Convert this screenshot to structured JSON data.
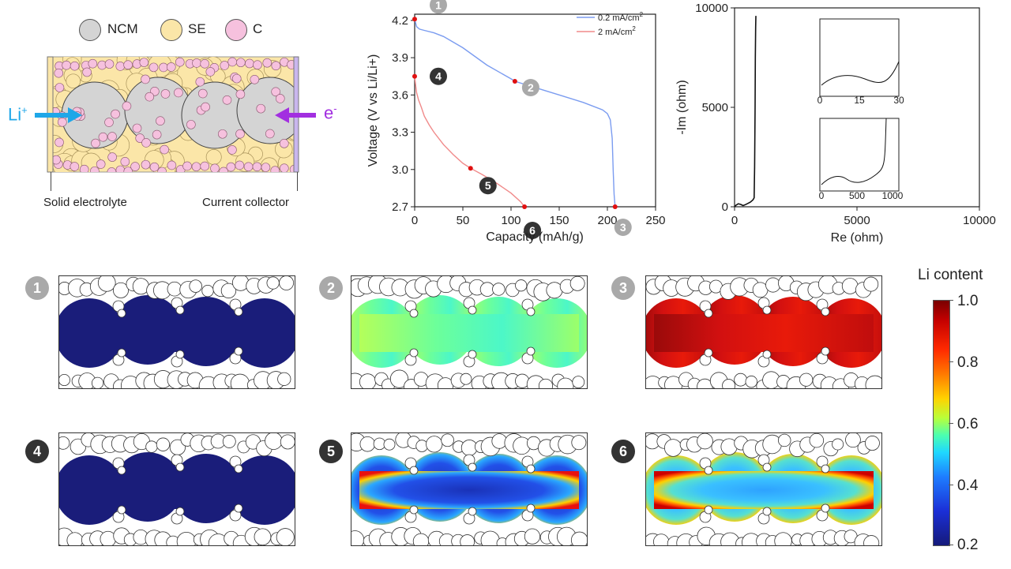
{
  "schematic": {
    "legend": [
      {
        "label": "NCM",
        "color": "#d4d4d4"
      },
      {
        "label": "SE",
        "color": "#fbe6a8"
      },
      {
        "label": "C",
        "color": "#f6c1de"
      }
    ],
    "li_ion": {
      "base": "Li",
      "sup": "+"
    },
    "electron": {
      "base": "e",
      "sup": "-"
    },
    "left_label": "Solid electrolyte",
    "right_label": "Current collector",
    "colors": {
      "li_arrow": "#1fa7e8",
      "e_arrow": "#a22fe0"
    }
  },
  "discharge_chart": {
    "type": "line",
    "xlabel": "Capacity (mAh/g)",
    "ylabel": "Voltage (V vs Li/Li+)",
    "xlim": [
      0,
      250
    ],
    "ylim": [
      2.7,
      4.25
    ],
    "xticks": [
      "0",
      "50",
      "100",
      "150",
      "200",
      "250"
    ],
    "yticks": [
      "2.7",
      "3.0",
      "3.3",
      "3.6",
      "3.9",
      "4.2"
    ],
    "legend": [
      {
        "label": "0.2 mA/cm",
        "sup": "2",
        "color": "#7b9cf0"
      },
      {
        "label": "2 mA/cm",
        "sup": "2",
        "color": "#f08a8a"
      }
    ],
    "markers": [
      {
        "label": "1",
        "style": "light"
      },
      {
        "label": "2",
        "style": "light"
      },
      {
        "label": "3",
        "style": "light"
      },
      {
        "label": "4",
        "style": "dark"
      },
      {
        "label": "5",
        "style": "dark"
      },
      {
        "label": "6",
        "style": "dark"
      }
    ]
  },
  "impedance_chart": {
    "type": "line",
    "xlabel": "Re (ohm)",
    "ylabel": "-Im (ohm)",
    "xlim": [
      0,
      10000
    ],
    "ylim": [
      0,
      10000
    ],
    "xticks": [
      "0",
      "5000",
      "10000"
    ],
    "yticks": [
      "0",
      "5000",
      "10000"
    ],
    "inset1_xticks": [
      "0",
      "15",
      "30"
    ],
    "inset2_xticks": [
      "0",
      "500",
      "1000"
    ]
  },
  "maps": {
    "badges": [
      "1",
      "2",
      "3",
      "4",
      "5",
      "6"
    ],
    "colorbar": {
      "title": "Li content",
      "ticks": [
        "1.0",
        "0.8",
        "0.6",
        "0.4",
        "0.2"
      ]
    }
  },
  "chart_data": [
    {
      "type": "line",
      "xlabel": "Capacity (mAh/g)",
      "ylabel": "Voltage (V vs Li/Li+)",
      "xlim": [
        0,
        250
      ],
      "ylim": [
        2.7,
        4.25
      ],
      "series": [
        {
          "name": "0.2 mA/cm2",
          "x": [
            0,
            2,
            5,
            10,
            20,
            30,
            50,
            75,
            100,
            104,
            125,
            150,
            175,
            195,
            200,
            203,
            205,
            206,
            207,
            208
          ],
          "y": [
            4.21,
            4.15,
            4.13,
            4.12,
            4.1,
            4.07,
            3.98,
            3.84,
            3.73,
            3.71,
            3.66,
            3.6,
            3.54,
            3.48,
            3.45,
            3.4,
            3.25,
            3.0,
            2.8,
            2.7
          ]
        },
        {
          "name": "2 mA/cm2",
          "x": [
            0,
            1,
            2,
            4,
            7,
            10,
            15,
            20,
            30,
            40,
            50,
            58,
            70,
            85,
            100,
            110,
            114
          ],
          "y": [
            3.75,
            3.68,
            3.62,
            3.56,
            3.5,
            3.43,
            3.36,
            3.3,
            3.2,
            3.12,
            3.05,
            3.01,
            2.96,
            2.89,
            2.81,
            2.74,
            2.7
          ]
        }
      ],
      "points": [
        {
          "label": "1",
          "x": 0,
          "y": 4.21
        },
        {
          "label": "2",
          "x": 104,
          "y": 3.71
        },
        {
          "label": "3",
          "x": 208,
          "y": 2.7
        },
        {
          "label": "4",
          "x": 0,
          "y": 3.75
        },
        {
          "label": "5",
          "x": 58,
          "y": 3.01
        },
        {
          "label": "6",
          "x": 114,
          "y": 2.7
        }
      ]
    },
    {
      "type": "line",
      "xlabel": "Re (ohm)",
      "ylabel": "-Im (ohm)",
      "xlim": [
        0,
        10000
      ],
      "ylim": [
        0,
        10000
      ],
      "series": [
        {
          "x": [
            0,
            60,
            150,
            250,
            350,
            450,
            550,
            650,
            750,
            800,
            820,
            840,
            850,
            860,
            870
          ],
          "y": [
            0,
            80,
            150,
            120,
            60,
            110,
            170,
            240,
            350,
            450,
            2000,
            5000,
            7500,
            9000,
            9600
          ]
        }
      ]
    }
  ]
}
